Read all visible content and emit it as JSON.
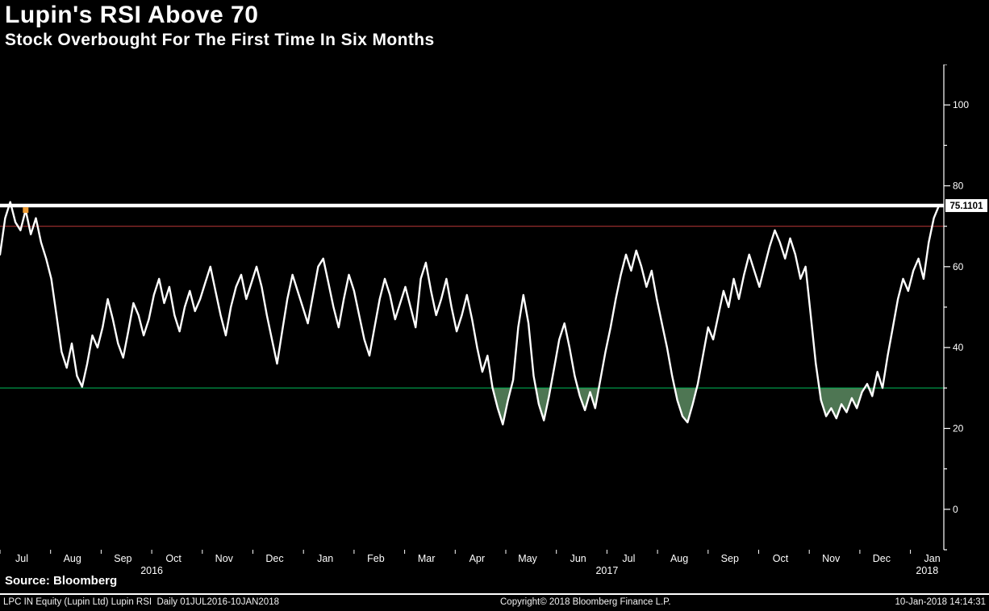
{
  "header": {
    "title": "Lupin's RSI Above 70",
    "subtitle": "Stock Overbought For The First Time In Six Months"
  },
  "source_line": "Source: Bloomberg",
  "footer": {
    "left": "LPC IN Equity (Lupin Ltd) Lupin RSI  Daily 01JUL2016-10JAN2018",
    "center": "Copyright© 2018 Bloomberg Finance L.P.",
    "right": "10-Jan-2018 14:14:31"
  },
  "chart_data": {
    "type": "line",
    "title": "Lupin's RSI Above 70",
    "subtitle": "Stock Overbought For The First Time In Six Months",
    "x_range": "01JUL2016-10JAN2018",
    "frequency": "Daily",
    "ylim": [
      -10,
      110
    ],
    "y_ticks": [
      0,
      20,
      40,
      60,
      80,
      100
    ],
    "grid": false,
    "legend_position": "none",
    "levels": {
      "overbought": 70,
      "oversold": 30,
      "last": 75.1101
    },
    "last_label": "75.1101",
    "marker": {
      "index": 5,
      "value": 74,
      "color": "#ED9B33"
    },
    "colors": {
      "line": "#FFFFFF",
      "overbought_line": "#A83232",
      "oversold_line": "#00A650",
      "dip_fill": "#55805A",
      "last_line": "#FFFFFF",
      "axis": "#FFFFFF",
      "background": "#000000"
    },
    "x_month_labels": [
      "Jul",
      "Aug",
      "Sep",
      "Oct",
      "Nov",
      "Dec",
      "Jan",
      "Feb",
      "Mar",
      "Apr",
      "May",
      "Jun",
      "Jul",
      "Aug",
      "Sep",
      "Oct",
      "Nov",
      "Dec",
      "Jan"
    ],
    "year_labels": [
      {
        "label": "2016",
        "month_span": [
          0,
          6
        ]
      },
      {
        "label": "2017",
        "month_span": [
          6,
          18
        ]
      },
      {
        "label": "2018",
        "month_span": [
          18,
          19
        ]
      }
    ],
    "series": [
      {
        "name": "Lupin RSI",
        "values": [
          63,
          72,
          76,
          71,
          69,
          74,
          68,
          72,
          66,
          62,
          57,
          48,
          39,
          35,
          41,
          33,
          30.3,
          36,
          43,
          40,
          45,
          52,
          47,
          41,
          37.5,
          44,
          51,
          48,
          43,
          47,
          53,
          57,
          51,
          55,
          48,
          44,
          50,
          54,
          49,
          52,
          56,
          60,
          54,
          48,
          43,
          50,
          55,
          58,
          52,
          56,
          60,
          55,
          48,
          42,
          36,
          44,
          52,
          58,
          54,
          50,
          46,
          53,
          60,
          62,
          56,
          50,
          45,
          52,
          58,
          54,
          48,
          42,
          38,
          45,
          52,
          57,
          53,
          47,
          51,
          55,
          50,
          45,
          57,
          61,
          54,
          48,
          52,
          57,
          50,
          44,
          48,
          53,
          47,
          40,
          34,
          38,
          30,
          25,
          21,
          27,
          32,
          45,
          53,
          46,
          33,
          26,
          22,
          28,
          35,
          42,
          46,
          40,
          33,
          28,
          24.5,
          29,
          25,
          32,
          39,
          45,
          52,
          58,
          63,
          59,
          64,
          60,
          55,
          59,
          52,
          46,
          40,
          33,
          27,
          23,
          21.5,
          26,
          31,
          38,
          45,
          42,
          48,
          54,
          50,
          57,
          52,
          58,
          63,
          59,
          55,
          60,
          65,
          69,
          66,
          62,
          67,
          63,
          57,
          60,
          48,
          36,
          27,
          23,
          25,
          22.5,
          26,
          24,
          27.5,
          25,
          29,
          31,
          28,
          34,
          30,
          38,
          45,
          52,
          57,
          54,
          59,
          62,
          57,
          66,
          72,
          75.1101
        ]
      }
    ]
  }
}
